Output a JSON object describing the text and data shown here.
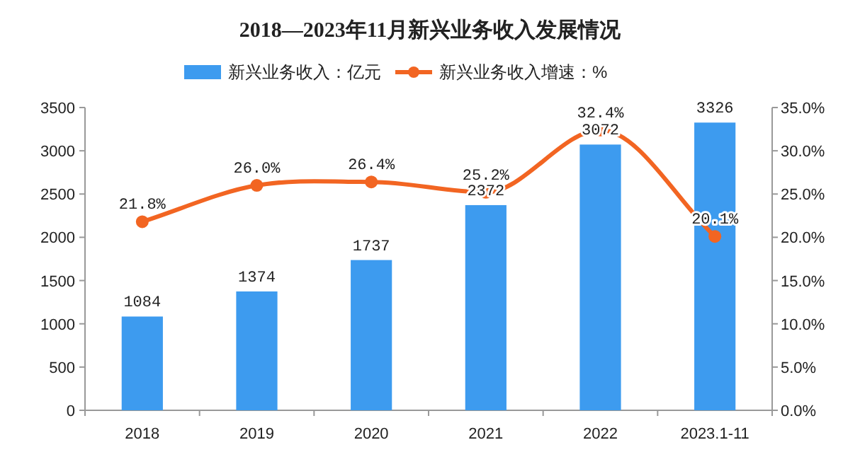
{
  "chart_data": {
    "type": "bar",
    "title": "2018—2023年11月新兴业务收入发展情况",
    "categories": [
      "2018",
      "2019",
      "2020",
      "2021",
      "2022",
      "2023.1-11"
    ],
    "series": [
      {
        "name": "新兴业务收入：亿元",
        "color": "#3d9bef",
        "values": [
          1084,
          1374,
          1737,
          2372,
          3072,
          3326
        ],
        "value_labels": [
          "1084",
          "1374",
          "1737",
          "2372",
          "3072",
          "3326"
        ]
      },
      {
        "name": "新兴业务收入增速：%",
        "type": "line",
        "axis": "y2",
        "color": "#f26522",
        "marker": "circle",
        "values": [
          21.8,
          26.0,
          26.4,
          25.2,
          32.4,
          20.1
        ],
        "value_labels": [
          "21.8%",
          "26.0%",
          "26.4%",
          "25.2%",
          "32.4%",
          "20.1%"
        ]
      }
    ],
    "ylim": [
      0,
      3500
    ],
    "yticks": [
      0,
      500,
      1000,
      1500,
      2000,
      2500,
      3000,
      3500
    ],
    "y2lim": [
      0,
      35
    ],
    "y2ticks": [
      {
        "value": 0,
        "label": "0.0%"
      },
      {
        "value": 5,
        "label": "5.0%"
      },
      {
        "value": 10,
        "label": "10.0%"
      },
      {
        "value": 15,
        "label": "15.0%"
      },
      {
        "value": 20,
        "label": "20.0%"
      },
      {
        "value": 25,
        "label": "25.0%"
      },
      {
        "value": 30,
        "label": "30.0%"
      },
      {
        "value": 35,
        "label": "35.0%"
      }
    ],
    "legend": "top",
    "grid": false
  }
}
